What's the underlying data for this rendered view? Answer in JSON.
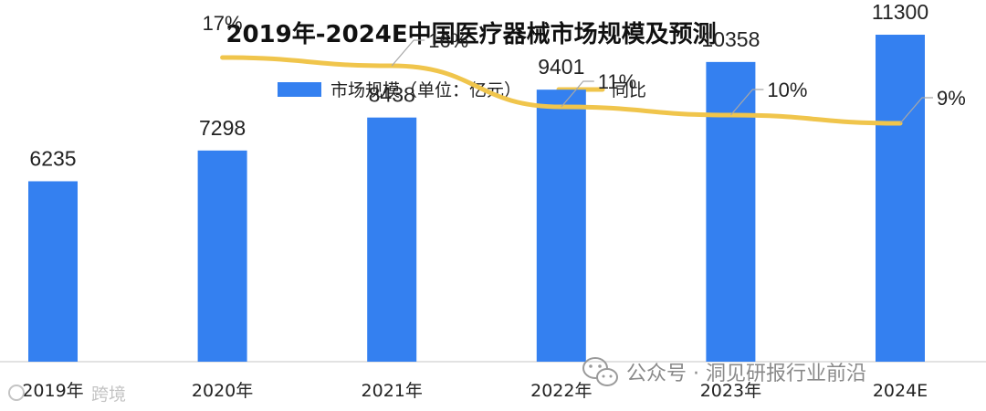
{
  "chart_data": {
    "type": "bar",
    "title": "2019年-2024E中国医疗器械市场规模及预测",
    "categories": [
      "2019年",
      "2020年",
      "2021年",
      "2022年",
      "2023年",
      "2024E"
    ],
    "series": [
      {
        "name": "市场规模（单位：亿元）",
        "kind": "bar",
        "color": "#3480F0",
        "values": [
          6235,
          7298,
          8438,
          9401,
          10358,
          11300
        ],
        "labels": [
          "6235",
          "7298",
          "8438",
          "9401",
          "10358",
          "11300"
        ]
      },
      {
        "name": "同比",
        "kind": "line",
        "color": "#F0C54C",
        "values": [
          null,
          17,
          16,
          11,
          10,
          9
        ],
        "labels": [
          "",
          "17%",
          "16%",
          "11%",
          "10%",
          "9%"
        ]
      }
    ],
    "ylim": [
      0,
      12500
    ],
    "yoy_ylim": [
      -20,
      24
    ],
    "legend_position": "top-center",
    "grid": false
  },
  "watermark": {
    "text": "公众号 · 洞见研报行业前沿",
    "left_text": "跨境"
  }
}
